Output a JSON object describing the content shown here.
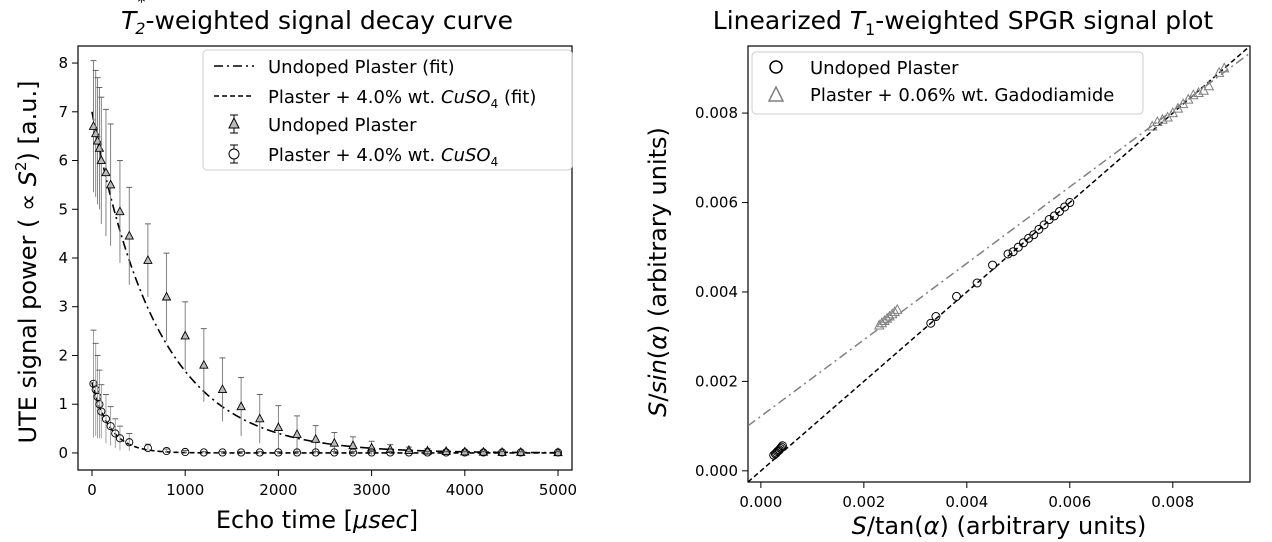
{
  "chart_data": [
    {
      "type": "scatter",
      "title": {
        "main": "-weighted signal decay curve",
        "symbol": "T",
        "sub": "2",
        "sup": "*"
      },
      "xlabel": {
        "prefix": "Echo time [",
        "mu": "μsec",
        "suffix": "]"
      },
      "ylabel": {
        "prefix": "UTE signal power ( ∝ ",
        "s": "S",
        "sup": "2",
        "suffix": ") [a.u.]"
      },
      "xlim": [
        -150,
        5150
      ],
      "ylim": [
        -0.35,
        8.35
      ],
      "xticks": [
        0,
        1000,
        2000,
        3000,
        4000,
        5000
      ],
      "yticks": [
        0,
        1,
        2,
        3,
        4,
        5,
        6,
        7,
        8
      ],
      "grid": false,
      "legend_position": "top-right",
      "legend": [
        {
          "label": "Undoped Plaster (fit)",
          "marker": "dashdot-line"
        },
        {
          "label": "Plaster + 4.0% wt. ",
          "label_italic": "CuSO",
          "label_sub": "4",
          "label_tail": " (fit)",
          "marker": "dashed-line"
        },
        {
          "label": "Undoped Plaster",
          "marker": "triangle-errorbar"
        },
        {
          "label": "Plaster + 4.0% wt. ",
          "label_italic": "CuSO",
          "label_sub": "4",
          "label_tail": "",
          "marker": "circle-errorbar"
        }
      ],
      "series": [
        {
          "name": "Undoped Plaster",
          "marker": "triangle",
          "x": [
            16,
            40,
            60,
            80,
            100,
            150,
            200,
            300,
            400,
            600,
            800,
            1000,
            1200,
            1400,
            1600,
            1800,
            2000,
            2200,
            2400,
            2600,
            2800,
            3000,
            3200,
            3400,
            3600,
            3800,
            4000,
            4200,
            4400,
            4600,
            5000
          ],
          "y": [
            6.7,
            6.55,
            6.4,
            6.25,
            6.0,
            5.75,
            5.5,
            4.95,
            4.45,
            3.95,
            3.2,
            2.4,
            1.8,
            1.3,
            0.95,
            0.7,
            0.52,
            0.38,
            0.28,
            0.2,
            0.15,
            0.1,
            0.07,
            0.05,
            0.04,
            0.03,
            0.02,
            0.015,
            0.01,
            0.01,
            0.005
          ],
          "err": [
            1.35,
            1.3,
            1.3,
            1.25,
            1.3,
            1.3,
            1.25,
            1.05,
            1.0,
            0.75,
            0.9,
            0.7,
            0.75,
            0.65,
            0.6,
            0.5,
            0.45,
            0.38,
            0.28,
            0.22,
            0.18,
            0.14,
            0.1,
            0.07,
            0.05,
            0.04,
            0.03,
            0.03,
            0.02,
            0.02,
            0.01
          ]
        },
        {
          "name": "Plaster + 4.0% wt. CuSO4",
          "marker": "circle",
          "x": [
            16,
            40,
            60,
            80,
            100,
            150,
            200,
            250,
            300,
            400,
            600,
            800,
            1000,
            1200,
            1400,
            1600,
            1800,
            2000,
            2200,
            2400,
            2600,
            2800,
            3000,
            3200,
            3400,
            3600,
            3800,
            4000,
            4200,
            4400,
            4600,
            5000
          ],
          "y": [
            1.42,
            1.3,
            1.15,
            1.0,
            0.85,
            0.7,
            0.55,
            0.4,
            0.3,
            0.22,
            0.1,
            0.04,
            0.02,
            0.01,
            0.01,
            0.01,
            0.01,
            0.01,
            0.01,
            0.01,
            0.01,
            0.01,
            0.01,
            0.01,
            0.01,
            0.01,
            0.01,
            0.01,
            0.01,
            0.01,
            0.01,
            0.01
          ],
          "err": [
            1.1,
            0.95,
            0.85,
            0.7,
            0.55,
            0.5,
            0.4,
            0.3,
            0.25,
            0.18,
            0.08,
            0.04,
            0.03,
            0.02,
            0.02,
            0.02,
            0.02,
            0.02,
            0.02,
            0.02,
            0.02,
            0.02,
            0.02,
            0.02,
            0.02,
            0.02,
            0.02,
            0.02,
            0.02,
            0.02,
            0.02,
            0.02
          ]
        }
      ],
      "fits": [
        {
          "name": "Undoped Plaster (fit)",
          "style": "dashdot",
          "model": "exponential",
          "amplitude": 7.0,
          "decay_constant": 700,
          "offset": 0
        },
        {
          "name": "Plaster + 4.0% wt. CuSO4 (fit)",
          "style": "dashed",
          "model": "exponential",
          "amplitude": 1.45,
          "decay_constant": 190,
          "offset": 0
        }
      ]
    },
    {
      "type": "scatter",
      "title": {
        "prefix": "Linearized ",
        "symbol": "T",
        "sub": "1",
        "suffix": "-weighted SPGR signal plot"
      },
      "xlabel": {
        "s": "S",
        "text": "/tan(",
        "alpha": "α",
        "tail": ") (arbitrary units)"
      },
      "ylabel": {
        "s": "S",
        "slash": "/",
        "func": "sin",
        "open": "(",
        "alpha": "α",
        "tail": ") (arbitrary units)"
      },
      "xlim": [
        -0.00025,
        0.0095
      ],
      "ylim": [
        -0.00025,
        0.0095
      ],
      "xticks": [
        0.0,
        0.002,
        0.004,
        0.006,
        0.008
      ],
      "xtick_labels": [
        "0.000",
        "0.002",
        "0.004",
        "0.006",
        "0.008"
      ],
      "yticks": [
        0.0,
        0.002,
        0.004,
        0.006,
        0.008
      ],
      "ytick_labels": [
        "0.000",
        "0.002",
        "0.004",
        "0.006",
        "0.008"
      ],
      "grid": false,
      "legend_position": "top-left",
      "legend": [
        {
          "label": "Undoped Plaster",
          "marker": "circle"
        },
        {
          "label": "Plaster + 0.06% wt. Gadodiamide",
          "marker": "triangle-gray"
        }
      ],
      "series": [
        {
          "name": "Undoped Plaster",
          "marker": "circle",
          "x": [
            0.00025,
            0.00028,
            0.0003,
            0.00032,
            0.00034,
            0.00036,
            0.00038,
            0.0004,
            0.00042,
            0.0033,
            0.0034,
            0.0038,
            0.0042,
            0.0045,
            0.0048,
            0.0049,
            0.005,
            0.0051,
            0.0052,
            0.0053,
            0.0054,
            0.0055,
            0.0056,
            0.0057,
            0.0058,
            0.0059,
            0.006
          ],
          "y": [
            0.00035,
            0.00038,
            0.0004,
            0.00043,
            0.00045,
            0.00047,
            0.0005,
            0.00053,
            0.00056,
            0.0033,
            0.00345,
            0.0039,
            0.0042,
            0.0046,
            0.00485,
            0.0049,
            0.005,
            0.0051,
            0.0052,
            0.00528,
            0.0054,
            0.0055,
            0.00562,
            0.0057,
            0.0058,
            0.0059,
            0.006
          ]
        },
        {
          "name": "Plaster + 0.06% wt. Gadodiamide",
          "marker": "triangle",
          "x": [
            0.0023,
            0.00235,
            0.0024,
            0.00245,
            0.0025,
            0.00255,
            0.0026,
            0.00265,
            0.0076,
            0.0077,
            0.0078,
            0.0079,
            0.008,
            0.0081,
            0.0082,
            0.0083,
            0.0084,
            0.0085,
            0.0086,
            0.0087,
            0.0089,
            0.009
          ],
          "y": [
            0.00325,
            0.0033,
            0.00335,
            0.0034,
            0.00345,
            0.0035,
            0.00355,
            0.0036,
            0.0077,
            0.0078,
            0.00785,
            0.0079,
            0.008,
            0.0081,
            0.0082,
            0.0083,
            0.0084,
            0.00845,
            0.0085,
            0.0086,
            0.0089,
            0.009
          ]
        }
      ],
      "fits": [
        {
          "name": "Undoped Plaster (fit)",
          "style": "dashed",
          "slope": 1.0,
          "intercept": 0.0
        },
        {
          "name": "Plaster + 0.06% wt. Gadodiamide (fit)",
          "style": "dashdot",
          "slope": 0.855,
          "intercept": 0.00122
        }
      ]
    }
  ],
  "colors": {
    "ink": "#000000",
    "gray": "#808080",
    "frame": "#000000"
  }
}
